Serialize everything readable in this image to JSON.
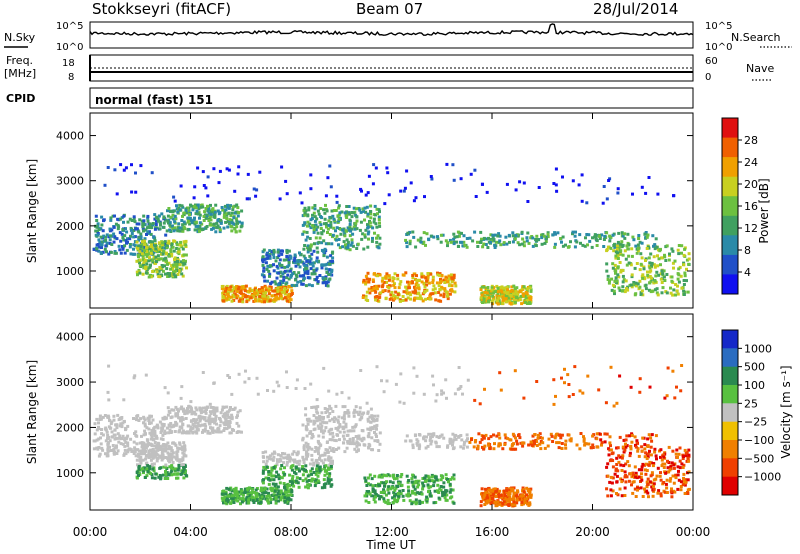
{
  "header": {
    "title": "Stokkseyri (fitACF)",
    "beam": "Beam 07",
    "date": "28/Jul/2014"
  },
  "strip_labels": {
    "nsky": "N.Sky",
    "nsky_top": "10^5",
    "nsky_bottom": "10^0",
    "nsearch": "N.Search",
    "nsearch_top": "10^5",
    "nsearch_bottom": "10^0",
    "freq_line1": "Freq.",
    "freq_line2": "[MHz]",
    "freq_top": "18",
    "freq_bottom": "8",
    "nave": "Nave",
    "nave_top": "60",
    "nave_bottom": "0",
    "cpid": "CPID",
    "mode": "normal (fast) 151"
  },
  "chart_data": [
    {
      "type": "heatmap",
      "panel": "power",
      "ylabel": "Slant Range [km]",
      "yticks": [
        "1000",
        "2000",
        "3000",
        "4000"
      ],
      "ylim": [
        180,
        4500
      ],
      "xlim": [
        0,
        24
      ],
      "colorbar_label": "Power [dB]",
      "colorbar_ticks": [
        "4",
        "8",
        "12",
        "16",
        "20",
        "24",
        "28"
      ],
      "colors": [
        "#1010f0",
        "#2050c8",
        "#2a8aa8",
        "#40a060",
        "#6cc040",
        "#c8d020",
        "#f0a000",
        "#f06000",
        "#e01010"
      ]
    },
    {
      "type": "heatmap",
      "panel": "velocity",
      "ylabel": "Slant Range [km]",
      "yticks": [
        "1000",
        "2000",
        "3000",
        "4000"
      ],
      "ylim": [
        180,
        4500
      ],
      "xlim": [
        0,
        24
      ],
      "xlabel": "Time UT",
      "xticks": [
        "00:00",
        "04:00",
        "08:00",
        "12:00",
        "16:00",
        "20:00",
        "00:00"
      ],
      "colorbar_label": "Velocity [m s⁻¹]",
      "colorbar_ticks": [
        "1000",
        "500",
        "100",
        "25",
        "−25",
        "−100",
        "−500",
        "−1000"
      ],
      "colors": [
        "#1428c8",
        "#2a6cc0",
        "#2a8a50",
        "#58c040",
        "#c0c0c0",
        "#f0c000",
        "#f08000",
        "#f04000",
        "#e00000"
      ]
    }
  ]
}
